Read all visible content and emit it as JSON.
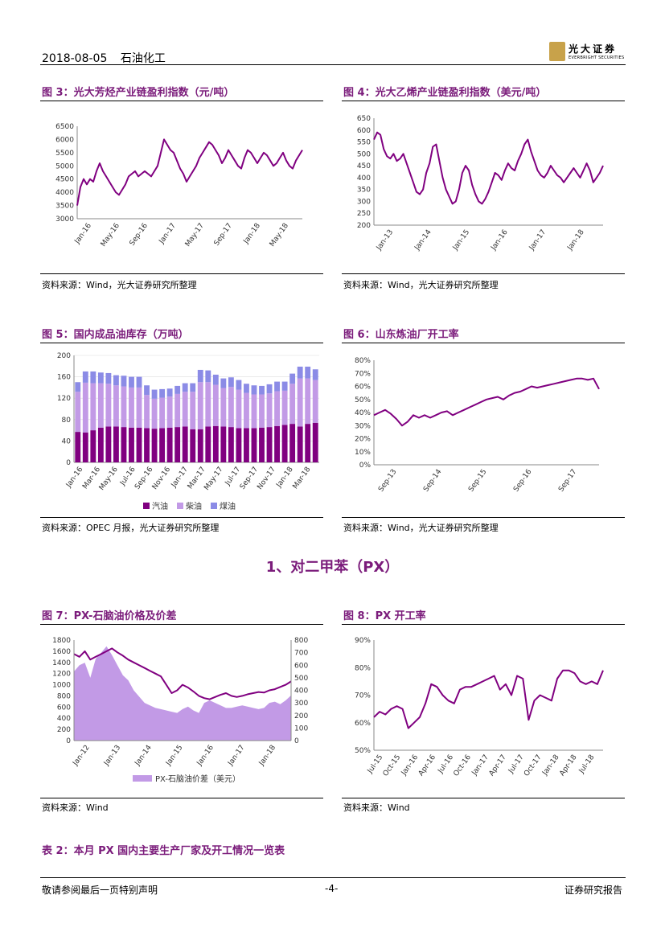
{
  "header": {
    "date": "2018-08-05",
    "category": "石油化工",
    "brand_cn": "光大证券",
    "brand_en": "EVERBRIGHT SECURITIES"
  },
  "figures": {
    "fig3": {
      "title": "图 3：光大芳烃产业链盈利指数（元/吨）",
      "source": "资料来源：Wind，光大证券研究所整理"
    },
    "fig4": {
      "title": "图 4：光大乙烯产业链盈利指数（美元/吨）",
      "source": "资料来源：Wind，光大证券研究所整理"
    },
    "fig5": {
      "title": "图 5：国内成品油库存（万吨）",
      "source": "资料来源：OPEC 月报，光大证券研究所整理"
    },
    "fig6": {
      "title": "图 6：山东炼油厂开工率",
      "source": "资料来源：Wind，光大证券研究所整理"
    },
    "fig7": {
      "title": "图 7：PX-石脑油价格及价差",
      "source": "资料来源：Wind"
    },
    "fig8": {
      "title": "图 8：PX 开工率",
      "source": "资料来源：Wind"
    }
  },
  "section": {
    "title": "1、对二甲苯（PX）"
  },
  "table": {
    "title": "表 2：本月 PX 国内主要生产厂家及开工情况一览表"
  },
  "footer": {
    "left": "敬请参阅最后一页特别声明",
    "page": "-4-",
    "right": "证券研究报告"
  },
  "colors": {
    "accent": "#7b1c7b",
    "line": "#800080",
    "diesel": "#c29ae6",
    "kerosene": "#8b8be6",
    "gasoline": "#800080"
  },
  "chart_data": [
    {
      "id": "fig3",
      "type": "line",
      "title": "光大芳烃产业链盈利指数（元/吨）",
      "yticks": [
        3000,
        3500,
        4000,
        4500,
        5000,
        5500,
        6000,
        6500
      ],
      "ylim": [
        3000,
        6500
      ],
      "xticks": [
        "Jan-16",
        "May-16",
        "Sep-16",
        "Jan-17",
        "May-17",
        "Sep-17",
        "Jan-18",
        "May-18"
      ],
      "values": [
        3500,
        4200,
        4500,
        4300,
        4500,
        4400,
        4800,
        5100,
        4800,
        4600,
        4400,
        4200,
        4000,
        3900,
        4100,
        4300,
        4600,
        4700,
        4800,
        4600,
        4700,
        4800,
        4700,
        4600,
        4800,
        5000,
        5500,
        6000,
        5800,
        5600,
        5500,
        5200,
        4900,
        4700,
        4400,
        4600,
        4800,
        5000,
        5300,
        5500,
        5700,
        5900,
        5800,
        5600,
        5400,
        5100,
        5300,
        5600,
        5400,
        5200,
        5000,
        4900,
        5300,
        5600,
        5500,
        5300,
        5100,
        5300,
        5500,
        5400,
        5200,
        5000,
        5100,
        5300,
        5500,
        5200,
        5000,
        4900,
        5200,
        5400,
        5600
      ]
    },
    {
      "id": "fig4",
      "type": "line",
      "title": "光大乙烯产业链盈利指数（美元/吨）",
      "yticks": [
        200,
        250,
        300,
        350,
        400,
        450,
        500,
        550,
        600,
        650
      ],
      "ylim": [
        200,
        650
      ],
      "xticks": [
        "Jan-13",
        "Jan-14",
        "Jan-15",
        "Jan-16",
        "Jan-17",
        "Jan-18"
      ],
      "values": [
        560,
        590,
        580,
        520,
        490,
        480,
        500,
        470,
        480,
        500,
        460,
        420,
        380,
        340,
        330,
        350,
        420,
        460,
        530,
        540,
        470,
        400,
        350,
        320,
        290,
        300,
        350,
        420,
        450,
        430,
        370,
        330,
        300,
        290,
        310,
        340,
        380,
        420,
        410,
        390,
        430,
        460,
        440,
        430,
        470,
        500,
        540,
        560,
        510,
        470,
        430,
        410,
        400,
        420,
        450,
        430,
        410,
        400,
        380,
        400,
        420,
        440,
        420,
        400,
        430,
        460,
        430,
        380,
        400,
        420,
        450
      ]
    },
    {
      "id": "fig5",
      "type": "bar",
      "title": "国内成品油库存（万吨）",
      "stacked": true,
      "yticks": [
        0,
        40,
        80,
        120,
        160,
        200
      ],
      "ylim": [
        0,
        200
      ],
      "xticks": [
        "Jan-16",
        "Mar-16",
        "May-16",
        "Jul-16",
        "Sep-16",
        "Nov-16",
        "Jan-17",
        "Mar-17",
        "May-17",
        "Jul-17",
        "Sep-17",
        "Nov-17",
        "Jan-18",
        "Mar-18"
      ],
      "legend": [
        "汽油",
        "柴油",
        "煤油"
      ],
      "series": [
        {
          "name": "汽油",
          "values": [
            57,
            56,
            60,
            65,
            67,
            67,
            66,
            65,
            65,
            64,
            63,
            64,
            65,
            66,
            67,
            62,
            62,
            67,
            68,
            67,
            66,
            64,
            64,
            64,
            65,
            66,
            68,
            70,
            72,
            67,
            72,
            74
          ]
        },
        {
          "name": "柴油",
          "values": [
            75,
            93,
            88,
            83,
            80,
            77,
            76,
            75,
            75,
            62,
            56,
            57,
            58,
            62,
            65,
            70,
            88,
            83,
            77,
            72,
            75,
            72,
            66,
            63,
            62,
            63,
            65,
            64,
            75,
            90,
            85,
            80
          ]
        },
        {
          "name": "煤油",
          "values": [
            18,
            21,
            22,
            20,
            20,
            19,
            20,
            20,
            20,
            18,
            17,
            16,
            15,
            15,
            16,
            16,
            23,
            22,
            19,
            18,
            18,
            18,
            17,
            17,
            16,
            17,
            18,
            17,
            19,
            22,
            22,
            20
          ]
        }
      ]
    },
    {
      "id": "fig6",
      "type": "line",
      "title": "山东炼油厂开工率",
      "yticks": [
        "0%",
        "10%",
        "20%",
        "30%",
        "40%",
        "50%",
        "60%",
        "70%",
        "80%"
      ],
      "ylim": [
        0,
        80
      ],
      "xticks": [
        "Sep-13",
        "Sep-14",
        "Sep-15",
        "Sep-16",
        "Sep-17"
      ],
      "values": [
        38,
        40,
        42,
        39,
        35,
        30,
        33,
        38,
        36,
        38,
        36,
        38,
        40,
        41,
        38,
        40,
        42,
        44,
        46,
        48,
        50,
        51,
        52,
        50,
        53,
        55,
        56,
        58,
        60,
        59,
        60,
        61,
        62,
        63,
        64,
        65,
        66,
        66,
        65,
        66,
        58
      ]
    },
    {
      "id": "fig7",
      "type": "line+area",
      "title": "PX-石脑油价格及价差",
      "yticks_left": [
        0,
        200,
        400,
        600,
        800,
        1000,
        1200,
        1400,
        1600,
        1800
      ],
      "ylim_left": [
        0,
        1800
      ],
      "yticks_right": [
        0,
        100,
        200,
        300,
        400,
        500,
        600,
        700,
        800
      ],
      "ylim_right": [
        0,
        800
      ],
      "xticks": [
        "Jan-12",
        "Jan-13",
        "Jan-14",
        "Jan-15",
        "Jan-16",
        "Jan-17",
        "Jan-18"
      ],
      "legend": [
        "PX-石脑油价差（美元）"
      ],
      "px_price": [
        1550,
        1500,
        1600,
        1450,
        1500,
        1550,
        1600,
        1650,
        1580,
        1520,
        1450,
        1400,
        1350,
        1300,
        1250,
        1200,
        1150,
        1000,
        850,
        900,
        1000,
        950,
        880,
        800,
        760,
        740,
        780,
        820,
        850,
        800,
        780,
        800,
        830,
        850,
        870,
        860,
        900,
        920,
        960,
        1000,
        1060
      ],
      "spread": [
        550,
        600,
        620,
        500,
        650,
        700,
        750,
        680,
        600,
        520,
        480,
        400,
        350,
        300,
        280,
        260,
        250,
        240,
        230,
        220,
        250,
        270,
        240,
        220,
        300,
        320,
        300,
        280,
        260,
        260,
        270,
        280,
        270,
        260,
        250,
        260,
        300,
        310,
        290,
        320,
        360
      ]
    },
    {
      "id": "fig8",
      "type": "line",
      "title": "PX 开工率",
      "yticks": [
        "50%",
        "60%",
        "70%",
        "80%",
        "90%"
      ],
      "ylim": [
        50,
        90
      ],
      "xticks": [
        "Jul-15",
        "Oct-15",
        "Jan-16",
        "Apr-16",
        "Jul-16",
        "Oct-16",
        "Jan-17",
        "Apr-17",
        "Jul-17",
        "Oct-17",
        "Jan-18",
        "Apr-18",
        "Jul-18"
      ],
      "values": [
        62,
        64,
        63,
        65,
        66,
        65,
        58,
        60,
        62,
        67,
        74,
        73,
        70,
        68,
        67,
        72,
        73,
        73,
        74,
        75,
        76,
        77,
        72,
        74,
        70,
        77,
        76,
        61,
        68,
        70,
        69,
        68,
        76,
        79,
        79,
        78,
        75,
        74,
        75,
        74,
        79
      ]
    }
  ]
}
